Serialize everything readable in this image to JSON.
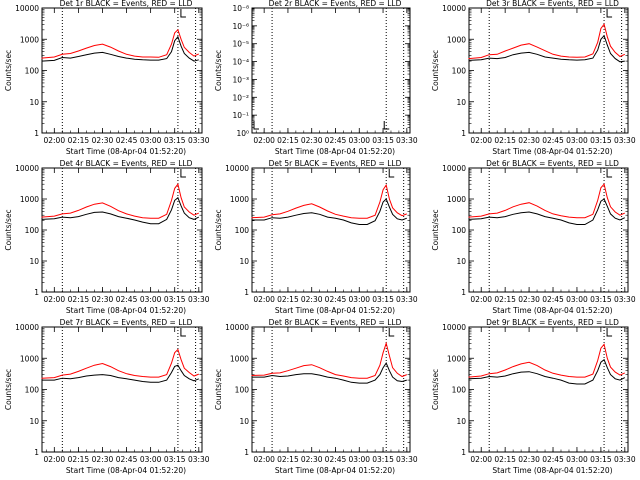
{
  "colors": {
    "events": "#000000",
    "lld": "#ff0000",
    "axis": "#000000",
    "background": "#ffffff"
  },
  "shared": {
    "xlabel": "Start Time (08-Apr-04 01:52:20)",
    "ylabel": "Counts/sec",
    "x_ticks": [
      "02:00",
      "02:15",
      "02:30",
      "02:45",
      "03:00",
      "03:15",
      "03:30"
    ],
    "x_range": [
      "01:52:20",
      "03:32"
    ],
    "marker_times": [
      "02:05",
      "03:17",
      "03:28"
    ],
    "y_scale": "log",
    "y_range": [
      1,
      10000
    ],
    "y_tick_labels": [
      "1",
      "10",
      "100",
      "1000",
      "10000"
    ]
  },
  "chart_data": [
    {
      "type": "line",
      "title": "Det 1r BLACK = Events, RED = LLD",
      "empty": false,
      "x": [
        "01:52",
        "02:00",
        "02:05",
        "02:10",
        "02:15",
        "02:20",
        "02:25",
        "02:30",
        "02:35",
        "02:40",
        "02:45",
        "02:50",
        "02:55",
        "03:00",
        "03:05",
        "03:10",
        "03:13",
        "03:15",
        "03:17",
        "03:19",
        "03:21",
        "03:24",
        "03:27",
        "03:30"
      ],
      "series": [
        {
          "name": "Events",
          "values": [
            200,
            210,
            260,
            250,
            280,
            320,
            360,
            380,
            330,
            280,
            250,
            230,
            220,
            215,
            215,
            240,
            400,
            900,
            1200,
            600,
            350,
            250,
            200,
            220
          ]
        },
        {
          "name": "LLD",
          "values": [
            250,
            270,
            330,
            350,
            420,
            520,
            630,
            700,
            560,
            420,
            330,
            290,
            270,
            270,
            265,
            320,
            700,
            1600,
            2000,
            1000,
            550,
            380,
            290,
            340
          ]
        }
      ]
    },
    {
      "type": "line",
      "title": "Det 2r BLACK = Events, RED = LLD",
      "empty": true,
      "ylim": [
        1,
        1e-08
      ],
      "y_tick_labels": [
        "10⁻⁸",
        "10⁻⁶",
        "10⁻⁵",
        "10⁻⁴",
        "10⁻³",
        "10⁻²",
        "10⁻¹",
        "10⁰"
      ],
      "x": [],
      "series": []
    },
    {
      "type": "line",
      "title": "Det 3r BLACK = Events, RED = LLD",
      "empty": false,
      "x": [
        "01:52",
        "02:00",
        "02:05",
        "02:10",
        "02:15",
        "02:20",
        "02:25",
        "02:30",
        "02:35",
        "02:40",
        "02:45",
        "02:50",
        "02:55",
        "03:00",
        "03:05",
        "03:10",
        "03:13",
        "03:15",
        "03:17",
        "03:19",
        "03:21",
        "03:24",
        "03:27",
        "03:30"
      ],
      "series": [
        {
          "name": "Events",
          "values": [
            210,
            220,
            250,
            240,
            260,
            320,
            360,
            380,
            330,
            270,
            250,
            230,
            220,
            215,
            220,
            250,
            450,
            1000,
            1300,
            650,
            350,
            240,
            190,
            200
          ]
        },
        {
          "name": "LLD",
          "values": [
            240,
            260,
            320,
            330,
            420,
            520,
            650,
            720,
            560,
            430,
            330,
            290,
            270,
            265,
            270,
            340,
            800,
            2200,
            3000,
            1200,
            600,
            380,
            280,
            330
          ]
        }
      ]
    },
    {
      "type": "line",
      "title": "Det 4r BLACK = Events, RED = LLD",
      "empty": false,
      "x": [
        "01:52",
        "02:00",
        "02:05",
        "02:10",
        "02:15",
        "02:20",
        "02:25",
        "02:30",
        "02:35",
        "02:40",
        "02:45",
        "02:50",
        "02:55",
        "03:00",
        "03:05",
        "03:10",
        "03:13",
        "03:15",
        "03:17",
        "03:19",
        "03:21",
        "03:24",
        "03:27",
        "03:30"
      ],
      "series": [
        {
          "name": "Events",
          "values": [
            220,
            230,
            260,
            250,
            270,
            320,
            370,
            380,
            330,
            270,
            240,
            210,
            180,
            160,
            160,
            220,
            450,
            900,
            1100,
            600,
            350,
            250,
            220,
            260
          ]
        },
        {
          "name": "LLD",
          "values": [
            260,
            280,
            330,
            350,
            430,
            550,
            680,
            750,
            580,
            420,
            330,
            280,
            250,
            240,
            240,
            320,
            900,
            2200,
            3000,
            1100,
            550,
            380,
            300,
            350
          ]
        }
      ]
    },
    {
      "type": "line",
      "title": "Det 5r BLACK = Events, RED = LLD",
      "empty": false,
      "x": [
        "01:52",
        "02:00",
        "02:05",
        "02:10",
        "02:15",
        "02:20",
        "02:25",
        "02:30",
        "02:35",
        "02:40",
        "02:45",
        "02:50",
        "02:55",
        "03:00",
        "03:05",
        "03:10",
        "03:13",
        "03:15",
        "03:17",
        "03:19",
        "03:21",
        "03:24",
        "03:27",
        "03:30"
      ],
      "series": [
        {
          "name": "Events",
          "values": [
            210,
            210,
            250,
            240,
            260,
            300,
            340,
            360,
            320,
            260,
            240,
            210,
            170,
            150,
            150,
            200,
            400,
            800,
            1000,
            550,
            320,
            230,
            210,
            240
          ]
        },
        {
          "name": "LLD",
          "values": [
            250,
            260,
            310,
            330,
            400,
            510,
            620,
            700,
            550,
            410,
            320,
            280,
            250,
            240,
            240,
            300,
            800,
            2000,
            2800,
            1000,
            520,
            360,
            290,
            330
          ]
        }
      ]
    },
    {
      "type": "line",
      "title": "Det 6r BLACK = Events, RED = LLD",
      "empty": false,
      "x": [
        "01:52",
        "02:00",
        "02:05",
        "02:10",
        "02:15",
        "02:20",
        "02:25",
        "02:30",
        "02:35",
        "02:40",
        "02:45",
        "02:50",
        "02:55",
        "03:00",
        "03:05",
        "03:10",
        "03:13",
        "03:15",
        "03:17",
        "03:19",
        "03:21",
        "03:24",
        "03:27",
        "03:30"
      ],
      "series": [
        {
          "name": "Events",
          "values": [
            220,
            230,
            260,
            250,
            270,
            320,
            360,
            380,
            330,
            270,
            240,
            210,
            170,
            150,
            150,
            210,
            450,
            850,
            1000,
            580,
            330,
            240,
            210,
            250
          ]
        },
        {
          "name": "LLD",
          "values": [
            260,
            280,
            330,
            350,
            430,
            560,
            680,
            760,
            590,
            430,
            330,
            290,
            260,
            250,
            250,
            320,
            900,
            2300,
            3000,
            1100,
            560,
            380,
            300,
            350
          ]
        }
      ]
    },
    {
      "type": "line",
      "title": "Det 7r BLACK = Events, RED = LLD",
      "empty": false,
      "x": [
        "01:52",
        "02:00",
        "02:05",
        "02:10",
        "02:15",
        "02:20",
        "02:25",
        "02:30",
        "02:35",
        "02:40",
        "02:45",
        "02:50",
        "02:55",
        "03:00",
        "03:05",
        "03:10",
        "03:13",
        "03:15",
        "03:17",
        "03:19",
        "03:21",
        "03:24",
        "03:27",
        "03:30"
      ],
      "series": [
        {
          "name": "Events",
          "values": [
            200,
            200,
            230,
            220,
            240,
            270,
            290,
            300,
            280,
            240,
            220,
            200,
            180,
            170,
            170,
            200,
            350,
            550,
            600,
            400,
            280,
            220,
            190,
            220
          ]
        },
        {
          "name": "LLD",
          "values": [
            230,
            240,
            290,
            310,
            380,
            480,
            600,
            680,
            540,
            400,
            320,
            280,
            260,
            250,
            250,
            300,
            700,
            1500,
            1900,
            900,
            480,
            350,
            270,
            310
          ]
        }
      ]
    },
    {
      "type": "line",
      "title": "Det 8r BLACK = Events, RED = LLD",
      "empty": false,
      "x": [
        "01:52",
        "02:00",
        "02:05",
        "02:10",
        "02:15",
        "02:20",
        "02:25",
        "02:30",
        "02:35",
        "02:40",
        "02:45",
        "02:50",
        "02:55",
        "03:00",
        "03:05",
        "03:10",
        "03:13",
        "03:15",
        "03:17",
        "03:19",
        "03:21",
        "03:24",
        "03:27",
        "03:30"
      ],
      "series": [
        {
          "name": "Events",
          "values": [
            250,
            250,
            280,
            260,
            270,
            300,
            320,
            320,
            290,
            250,
            230,
            200,
            170,
            160,
            160,
            200,
            300,
            500,
            700,
            400,
            250,
            190,
            180,
            200
          ]
        },
        {
          "name": "LLD",
          "values": [
            280,
            290,
            330,
            340,
            400,
            480,
            580,
            620,
            500,
            380,
            300,
            270,
            240,
            230,
            230,
            280,
            600,
            1500,
            3000,
            1200,
            500,
            330,
            260,
            300
          ]
        }
      ]
    },
    {
      "type": "line",
      "title": "Det 9r BLACK = Events, RED = LLD",
      "empty": false,
      "x": [
        "01:52",
        "02:00",
        "02:05",
        "02:10",
        "02:15",
        "02:20",
        "02:25",
        "02:30",
        "02:35",
        "02:40",
        "02:45",
        "02:50",
        "02:55",
        "03:00",
        "03:05",
        "03:10",
        "03:13",
        "03:15",
        "03:17",
        "03:19",
        "03:21",
        "03:24",
        "03:27",
        "03:30"
      ],
      "series": [
        {
          "name": "Events",
          "values": [
            220,
            230,
            260,
            250,
            270,
            320,
            360,
            370,
            320,
            260,
            230,
            200,
            160,
            150,
            150,
            200,
            400,
            750,
            900,
            500,
            300,
            220,
            200,
            240
          ]
        },
        {
          "name": "LLD",
          "values": [
            250,
            270,
            320,
            340,
            420,
            540,
            660,
            740,
            580,
            420,
            330,
            290,
            260,
            250,
            250,
            310,
            850,
            2100,
            2800,
            1000,
            520,
            360,
            290,
            340
          ]
        }
      ]
    }
  ]
}
